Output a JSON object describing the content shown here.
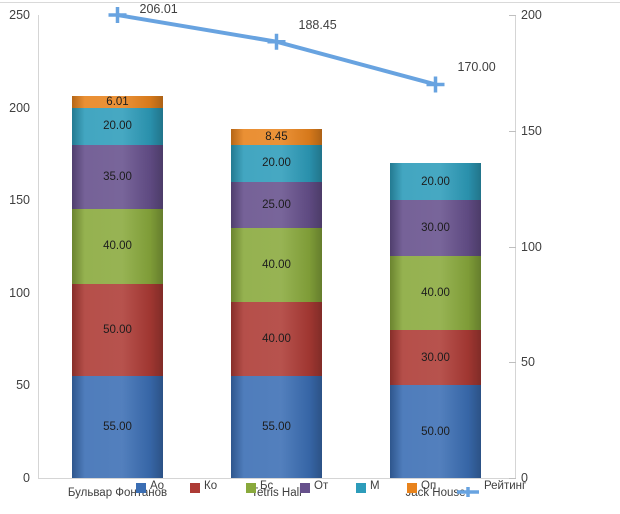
{
  "chart_data": {
    "type": "bar",
    "subtype": "stacked-column-with-line",
    "title": "",
    "categories": [
      "Бульвар Фонтанов",
      "Tetris Hall",
      "Jack House"
    ],
    "series": [
      {
        "name": "Ао",
        "type": "bar",
        "color": "#3B6EB4",
        "values": [
          55.0,
          55.0,
          50.0
        ]
      },
      {
        "name": "Ко",
        "type": "bar",
        "color": "#AD3B35",
        "values": [
          50.0,
          40.0,
          30.0
        ]
      },
      {
        "name": "Бс",
        "type": "bar",
        "color": "#89A93C",
        "values": [
          40.0,
          40.0,
          40.0
        ]
      },
      {
        "name": "От",
        "type": "bar",
        "color": "#66508C",
        "values": [
          35.0,
          25.0,
          30.0
        ]
      },
      {
        "name": "М",
        "type": "bar",
        "color": "#2D9CBA",
        "values": [
          20.0,
          20.0,
          20.0
        ]
      },
      {
        "name": "Оп",
        "type": "bar",
        "color": "#E8831D",
        "values": [
          6.01,
          8.45,
          0
        ]
      }
    ],
    "line_series": {
      "name": "Рейтинг",
      "color": "#68A3E0",
      "axis": "right",
      "marker": "plus",
      "values": [
        206.01,
        188.45,
        170.0
      ],
      "data_labels": [
        "206.01",
        "188.45",
        "170.00"
      ]
    },
    "bar_totals": [
      206.01,
      188.45,
      170.0
    ],
    "segment_labels_format": "0.00",
    "left_axis": {
      "range": [
        0,
        250
      ],
      "ticks": [
        0,
        50,
        100,
        150,
        200,
        250
      ]
    },
    "right_axis": {
      "range": [
        0,
        200
      ],
      "ticks": [
        0,
        50,
        100,
        150,
        200
      ]
    },
    "legend": {
      "position": "bottom",
      "entries": [
        "Ао",
        "Ко",
        "Бс",
        "От",
        "М",
        "Оп",
        "Рейтинг"
      ]
    },
    "grid": false,
    "background": "#ffffff"
  }
}
